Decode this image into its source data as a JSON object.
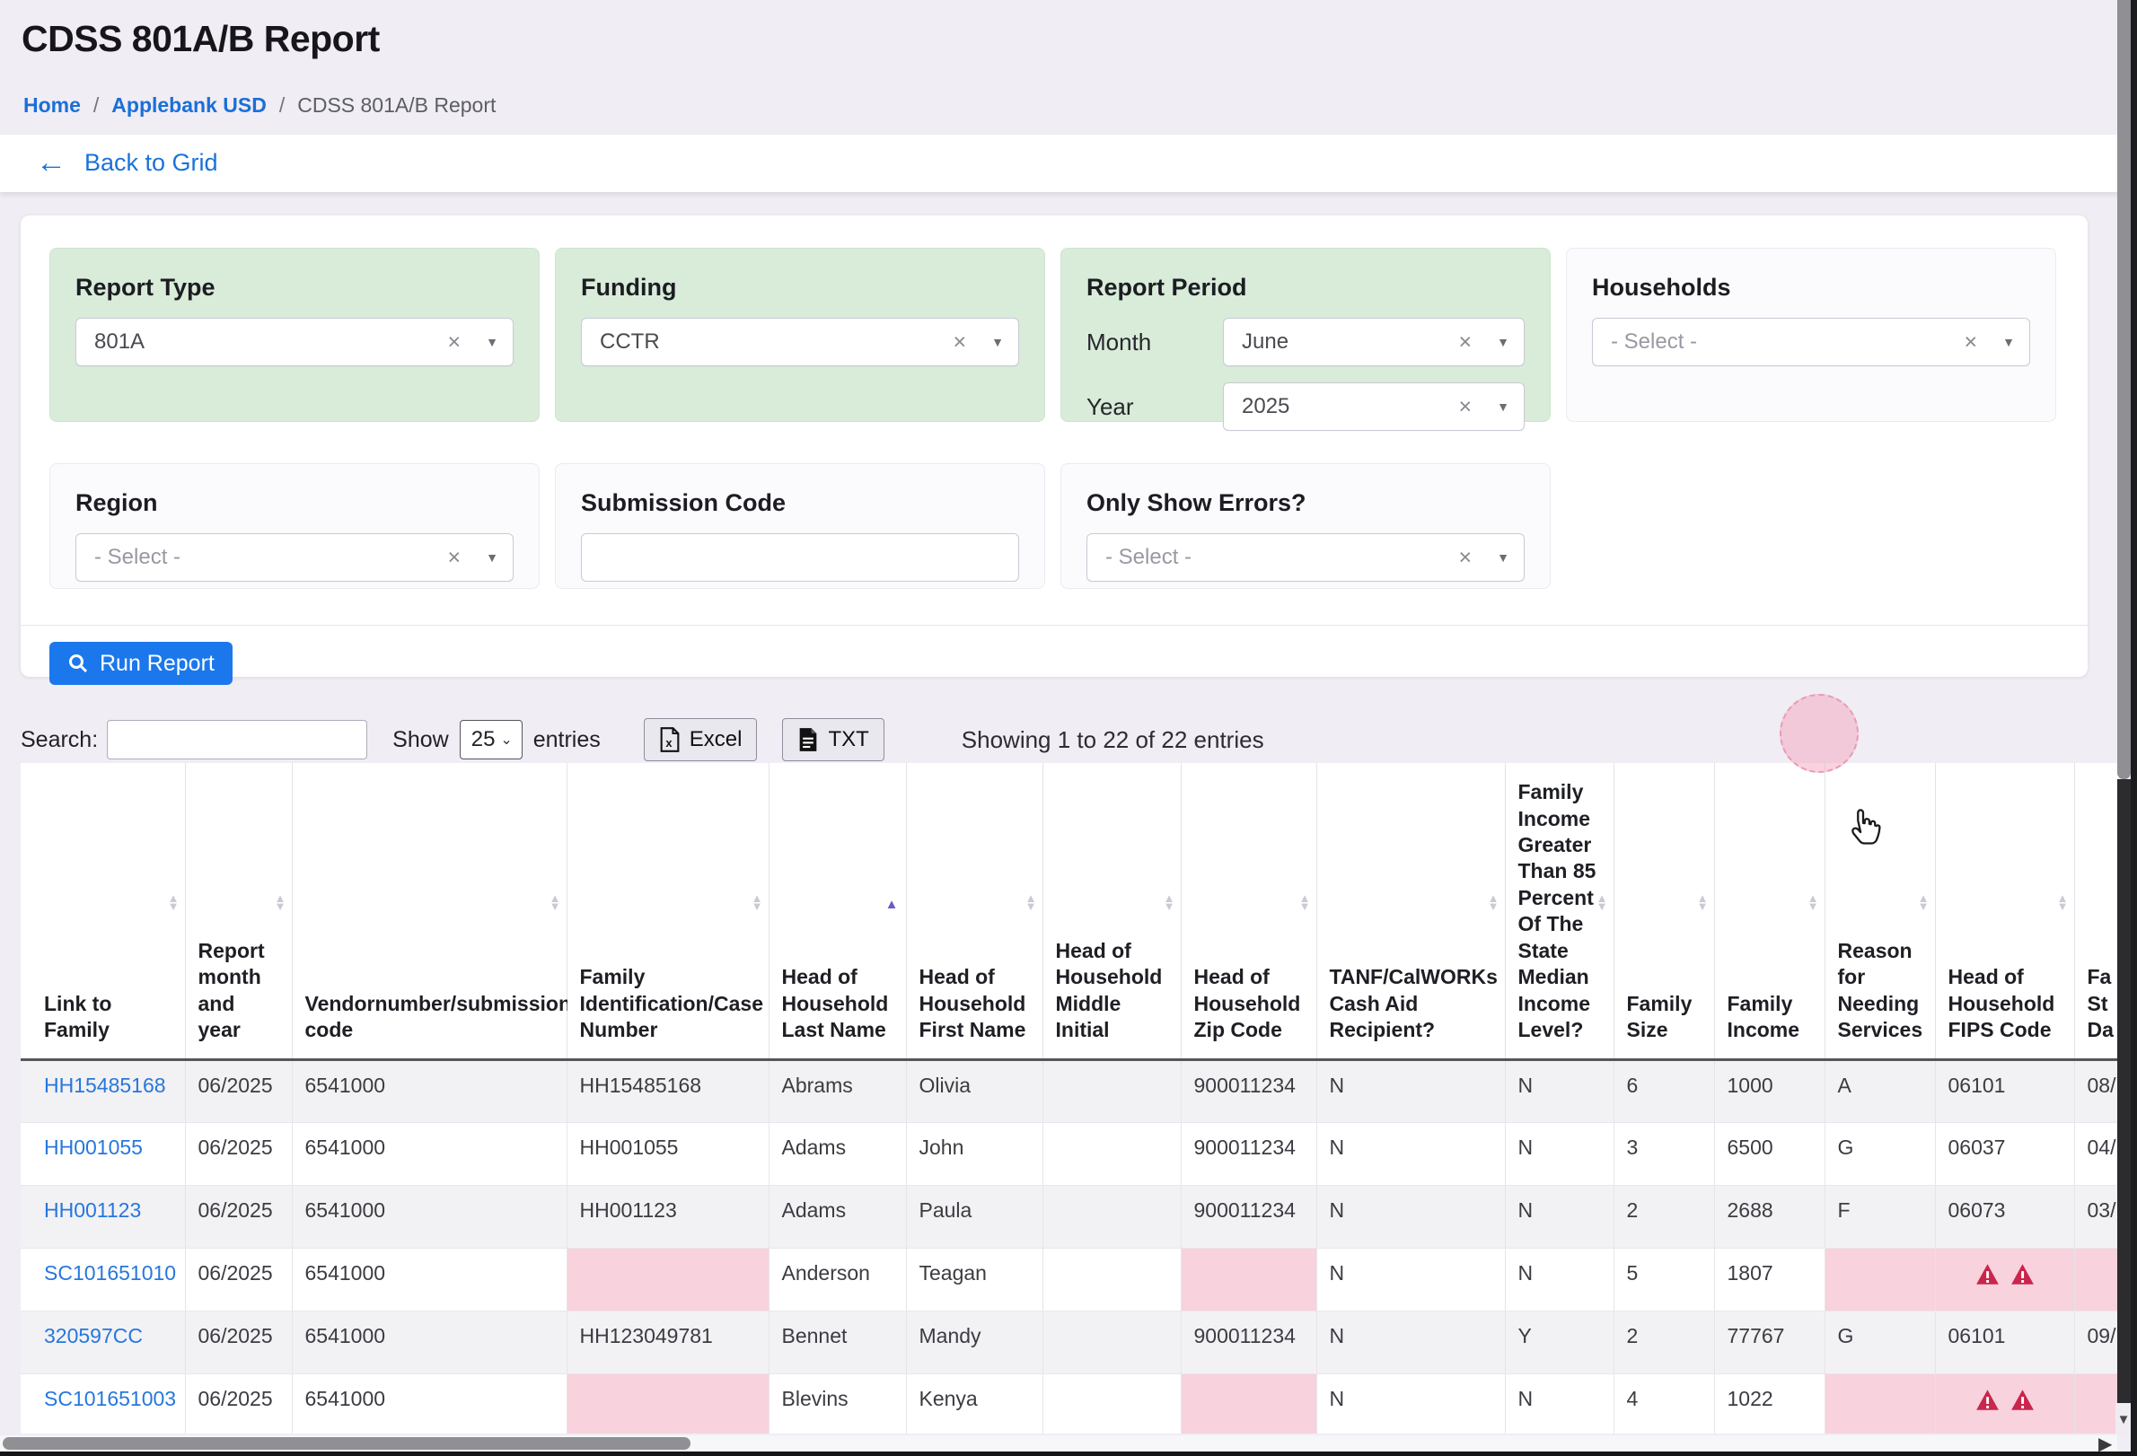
{
  "page": {
    "title": "CDSS 801A/B Report"
  },
  "breadcrumb": {
    "separator": "/",
    "items": [
      {
        "label": "Home"
      },
      {
        "label": "Applebank USD"
      },
      {
        "label": "CDSS 801A/B Report"
      }
    ]
  },
  "back_link": {
    "label": "Back to Grid",
    "arrow_glyph": "←"
  },
  "filters": {
    "clear_glyph": "×",
    "caret_glyph": "▼",
    "report_type": {
      "label": "Report Type",
      "value": "801A"
    },
    "funding": {
      "label": "Funding",
      "value": "CCTR"
    },
    "report_period": {
      "label": "Report Period",
      "month_label": "Month",
      "month_value": "June",
      "year_label": "Year",
      "year_value": "2025"
    },
    "households": {
      "label": "Households",
      "placeholder": "- Select -"
    },
    "region": {
      "label": "Region",
      "placeholder": "- Select -"
    },
    "submission_code": {
      "label": "Submission Code",
      "value": ""
    },
    "only_show_errors": {
      "label": "Only Show Errors?",
      "placeholder": "- Select -"
    }
  },
  "run_report": {
    "label": "Run Report"
  },
  "toolbar": {
    "search_label": "Search:",
    "search_value": "",
    "show_label": "Show",
    "page_size": "25",
    "entries_label": "entries",
    "excel_label": "Excel",
    "txt_label": "TXT",
    "showing_text": "Showing 1 to 22 of 22 entries"
  },
  "table": {
    "columns": [
      {
        "id": "link-to-family",
        "label": "Link to Family",
        "sort": "both"
      },
      {
        "id": "report-month-year",
        "label": "Report month and year",
        "sort": "both"
      },
      {
        "id": "vendor-number",
        "label": "Vendornumber/submission code",
        "sort": "both"
      },
      {
        "id": "family-id",
        "label": "Family Identification/Case Number",
        "sort": "both"
      },
      {
        "id": "hoh-last-name",
        "label": "Head of Household Last Name",
        "sort": "asc"
      },
      {
        "id": "hoh-first-name",
        "label": "Head of Household First Name",
        "sort": "both"
      },
      {
        "id": "hoh-middle-initial",
        "label": "Head of Household Middle Initial",
        "sort": "both"
      },
      {
        "id": "hoh-zip-code",
        "label": "Head of Household Zip Code",
        "sort": "both"
      },
      {
        "id": "tanf-calworks",
        "label": "TANF/CalWORKs Cash Aid Recipient?",
        "sort": "both"
      },
      {
        "id": "income-gt-85",
        "label": "Family Income Greater Than 85 Percent Of The State Median Income Level?",
        "sort": "both"
      },
      {
        "id": "family-size",
        "label": "Family Size",
        "sort": "both"
      },
      {
        "id": "family-income",
        "label": "Family Income",
        "sort": "both"
      },
      {
        "id": "reason-needing-services",
        "label": "Reason for Needing Services",
        "sort": "both"
      },
      {
        "id": "hoh-fips-code",
        "label": "Head of Household FIPS Code",
        "sort": "both"
      },
      {
        "id": "family-start-date-truncated",
        "label": "Fa St Da",
        "sort": "none"
      }
    ],
    "rows": [
      [
        {
          "v": "HH15485168",
          "link": true
        },
        {
          "v": "06/2025"
        },
        {
          "v": "6541000"
        },
        {
          "v": "HH15485168"
        },
        {
          "v": "Abrams"
        },
        {
          "v": "Olivia"
        },
        {
          "v": ""
        },
        {
          "v": "900011234"
        },
        {
          "v": "N"
        },
        {
          "v": "N"
        },
        {
          "v": "6"
        },
        {
          "v": "1000"
        },
        {
          "v": "A"
        },
        {
          "v": "06101"
        },
        {
          "v": "08/"
        }
      ],
      [
        {
          "v": "HH001055",
          "link": true
        },
        {
          "v": "06/2025"
        },
        {
          "v": "6541000"
        },
        {
          "v": "HH001055"
        },
        {
          "v": "Adams"
        },
        {
          "v": "John"
        },
        {
          "v": ""
        },
        {
          "v": "900011234"
        },
        {
          "v": "N"
        },
        {
          "v": "N"
        },
        {
          "v": "3"
        },
        {
          "v": "6500"
        },
        {
          "v": "G"
        },
        {
          "v": "06037"
        },
        {
          "v": "04/"
        }
      ],
      [
        {
          "v": "HH001123",
          "link": true
        },
        {
          "v": "06/2025"
        },
        {
          "v": "6541000"
        },
        {
          "v": "HH001123"
        },
        {
          "v": "Adams"
        },
        {
          "v": "Paula"
        },
        {
          "v": ""
        },
        {
          "v": "900011234"
        },
        {
          "v": "N"
        },
        {
          "v": "N"
        },
        {
          "v": "2"
        },
        {
          "v": "2688"
        },
        {
          "v": "F"
        },
        {
          "v": "06073"
        },
        {
          "v": "03/"
        }
      ],
      [
        {
          "v": "SC101651010",
          "link": true
        },
        {
          "v": "06/2025"
        },
        {
          "v": "6541000"
        },
        {
          "v": "",
          "pink": true
        },
        {
          "v": "Anderson"
        },
        {
          "v": "Teagan"
        },
        {
          "v": ""
        },
        {
          "v": "",
          "pink": true
        },
        {
          "v": "N"
        },
        {
          "v": "N"
        },
        {
          "v": "5"
        },
        {
          "v": "1807"
        },
        {
          "v": "",
          "pink": true
        },
        {
          "v": "",
          "pink": true,
          "warn": 2
        },
        {
          "v": "",
          "pink": true
        }
      ],
      [
        {
          "v": "320597CC",
          "link": true
        },
        {
          "v": "06/2025"
        },
        {
          "v": "6541000"
        },
        {
          "v": "HH123049781"
        },
        {
          "v": "Bennet"
        },
        {
          "v": "Mandy"
        },
        {
          "v": ""
        },
        {
          "v": "900011234"
        },
        {
          "v": "N"
        },
        {
          "v": "Y"
        },
        {
          "v": "2"
        },
        {
          "v": "77767"
        },
        {
          "v": "G"
        },
        {
          "v": "06101"
        },
        {
          "v": "09/"
        }
      ],
      [
        {
          "v": "SC101651003",
          "link": true
        },
        {
          "v": "06/2025"
        },
        {
          "v": "6541000"
        },
        {
          "v": "",
          "pink": true
        },
        {
          "v": "Blevins"
        },
        {
          "v": "Kenya"
        },
        {
          "v": ""
        },
        {
          "v": "",
          "pink": true
        },
        {
          "v": "N"
        },
        {
          "v": "N"
        },
        {
          "v": "4"
        },
        {
          "v": "1022"
        },
        {
          "v": "",
          "pink": true
        },
        {
          "v": "",
          "pink": true,
          "warn": 2
        },
        {
          "v": "",
          "pink": true
        }
      ]
    ]
  },
  "colors": {
    "accent_blue": "#1b78ec",
    "link_blue": "#2677dd",
    "breadcrumb_blue": "#1a6fd8",
    "filter_green": "#d8ecd9",
    "error_pink": "#f8d2dc",
    "error_red": "#c9254d",
    "page_background": "#f0edf4",
    "stripe_gray": "#f2f1f4"
  }
}
